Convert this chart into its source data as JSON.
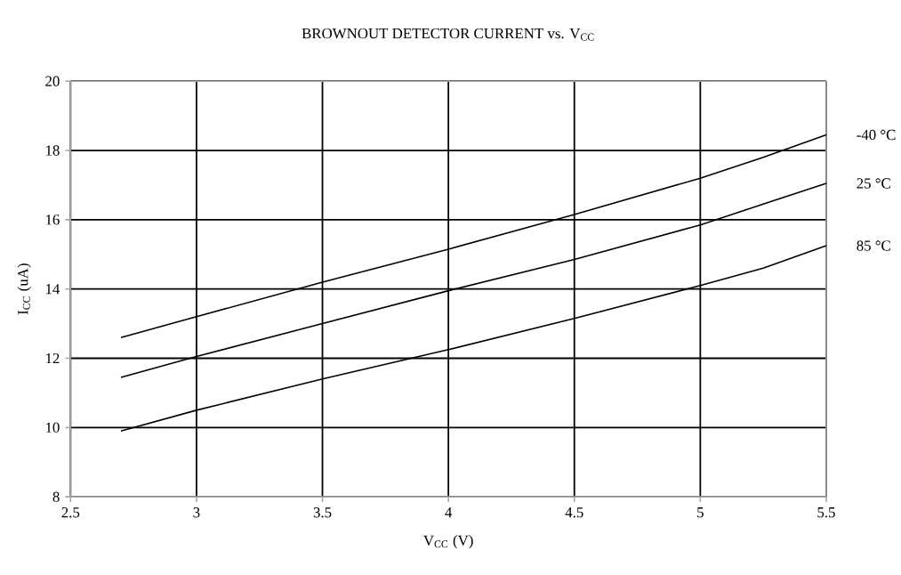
{
  "chart_data": {
    "type": "line",
    "title": "BROWNOUT DETECTOR CURRENT vs. V$_{CC}$",
    "xlabel": "V$_{CC}$ (V)",
    "ylabel": "I$_{CC}$ (uA)",
    "x": [
      2.7,
      3,
      3.5,
      4,
      4.5,
      5,
      5.25,
      5.5
    ],
    "series": [
      {
        "name": "-40 °C",
        "color": "#000000",
        "values": [
          12.6,
          13.2,
          14.2,
          15.15,
          16.15,
          17.2,
          17.8,
          18.45
        ]
      },
      {
        "name": "25 °C",
        "color": "#000000",
        "values": [
          11.45,
          12.05,
          13.0,
          13.95,
          14.85,
          15.85,
          16.45,
          17.05
        ]
      },
      {
        "name": "85 °C",
        "color": "#000000",
        "values": [
          9.9,
          10.5,
          11.4,
          12.25,
          13.15,
          14.1,
          14.6,
          15.25
        ]
      }
    ],
    "xlim": [
      2.5,
      5.5
    ],
    "ylim": [
      8,
      20
    ],
    "xticks": [
      2.5,
      3,
      3.5,
      4,
      4.5,
      5,
      5.5
    ],
    "yticks": [
      8,
      10,
      12,
      14,
      16,
      18,
      20
    ],
    "grid": true,
    "marker": "none",
    "line_style": "solid"
  }
}
